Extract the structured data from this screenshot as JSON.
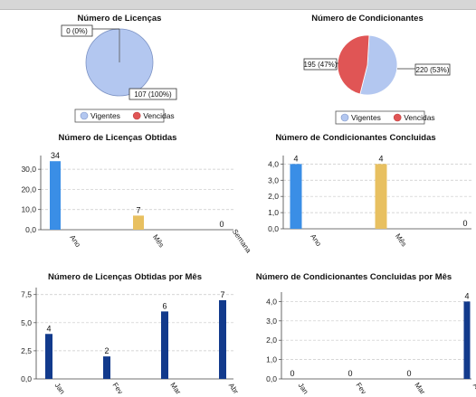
{
  "chart_data": [
    {
      "type": "pie",
      "title": "Número de Licenças",
      "categories": [
        "Vigentes",
        "Vencidas"
      ],
      "values": [
        107,
        0
      ],
      "slice_labels": [
        "107 (100%)",
        "0 (0%)"
      ],
      "colors": [
        "#b3c7f0",
        "#e05555"
      ],
      "legend": "bottom"
    },
    {
      "type": "pie",
      "title": "Número de Condicionantes",
      "categories": [
        "Vigentes",
        "Vencidas"
      ],
      "values": [
        220,
        195
      ],
      "slice_labels": [
        "220 (53%)",
        "195 (47%)"
      ],
      "colors": [
        "#b3c7f0",
        "#e05555"
      ],
      "legend": "bottom"
    },
    {
      "type": "bar",
      "title": "Número de Licenças Obtidas",
      "categories": [
        "Ano",
        "Mês",
        "Semana"
      ],
      "values": [
        34,
        7,
        0
      ],
      "colors": [
        "#3a8ee6",
        "#e8c060",
        "#3a8ee6"
      ],
      "ylim": [
        0,
        35
      ],
      "yticks": [
        "0,0",
        "10,0",
        "20,0",
        "30,0"
      ],
      "ytick_values": [
        0,
        10,
        20,
        30
      ],
      "grid": true
    },
    {
      "type": "bar",
      "title": "Número de Condicionantes Concluidas",
      "categories": [
        "Ano",
        "Mês",
        "Semana"
      ],
      "values": [
        4,
        4,
        0
      ],
      "colors": [
        "#3a8ee6",
        "#e8c060",
        "#3a8ee6"
      ],
      "ylim": [
        0,
        4.3
      ],
      "yticks": [
        "0,0",
        "1,0",
        "2,0",
        "3,0",
        "4,0"
      ],
      "ytick_values": [
        0,
        1,
        2,
        3,
        4
      ],
      "grid": true
    },
    {
      "type": "bar",
      "title": "Número de Licenças Obtidas por Mês",
      "categories": [
        "Jan",
        "Fev",
        "Mar",
        "Abr"
      ],
      "values": [
        4,
        2,
        6,
        7
      ],
      "colors": [
        "#123a8c",
        "#123a8c",
        "#123a8c",
        "#123a8c"
      ],
      "ylim": [
        0,
        7.8
      ],
      "yticks": [
        "0,0",
        "2,5",
        "5,0",
        "7,5"
      ],
      "ytick_values": [
        0,
        2.5,
        5,
        7.5
      ],
      "grid": true
    },
    {
      "type": "bar",
      "title": "Número de Condicionantes Concluidas por Mês",
      "categories": [
        "Jan",
        "Fev",
        "Mar",
        "Abr"
      ],
      "values": [
        0,
        0,
        0,
        4
      ],
      "colors": [
        "#123a8c",
        "#123a8c",
        "#123a8c",
        "#123a8c"
      ],
      "ylim": [
        0,
        4.3
      ],
      "yticks": [
        "0,0",
        "1,0",
        "2,0",
        "3,0",
        "4,0"
      ],
      "ytick_values": [
        0,
        1,
        2,
        3,
        4
      ],
      "grid": true
    }
  ]
}
